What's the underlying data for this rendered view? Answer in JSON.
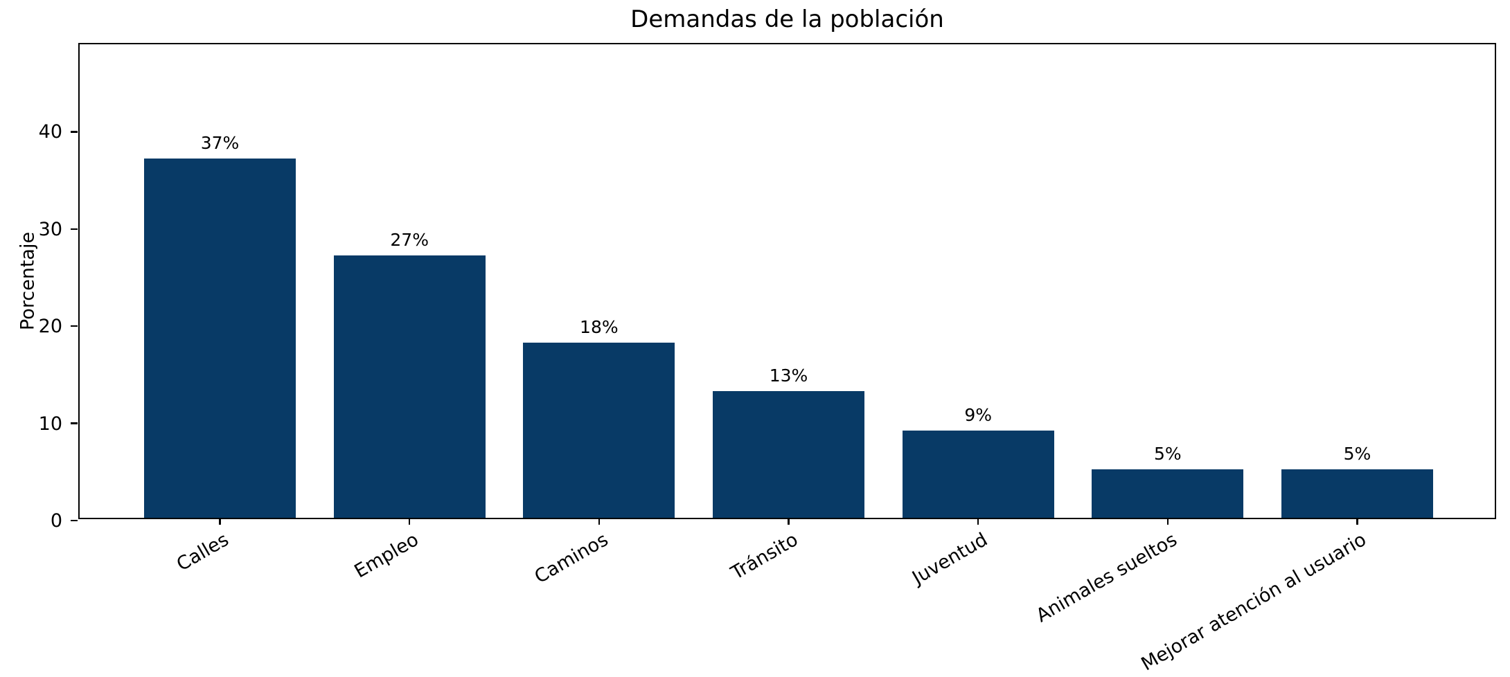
{
  "chart_data": {
    "type": "bar",
    "title": "Demandas de la población",
    "xlabel": "",
    "ylabel": "Porcentaje",
    "categories": [
      "Calles",
      "Empleo",
      "Caminos",
      "Tránsito",
      "Juventud",
      "Animales sueltos",
      "Mejorar atención al usuario"
    ],
    "values": [
      37,
      27,
      18,
      13,
      9,
      5,
      5
    ],
    "value_labels": [
      "37%",
      "27%",
      "18%",
      "13%",
      "9%",
      "5%",
      "5%"
    ],
    "yticks": [
      0,
      10,
      20,
      30,
      40
    ],
    "ylim": [
      0,
      49
    ],
    "bar_color": "#083a66",
    "axis_color": "#000000",
    "background_color": "#ffffff",
    "grid": false,
    "legend_position": "none",
    "x_tick_rotation_deg": 30
  }
}
